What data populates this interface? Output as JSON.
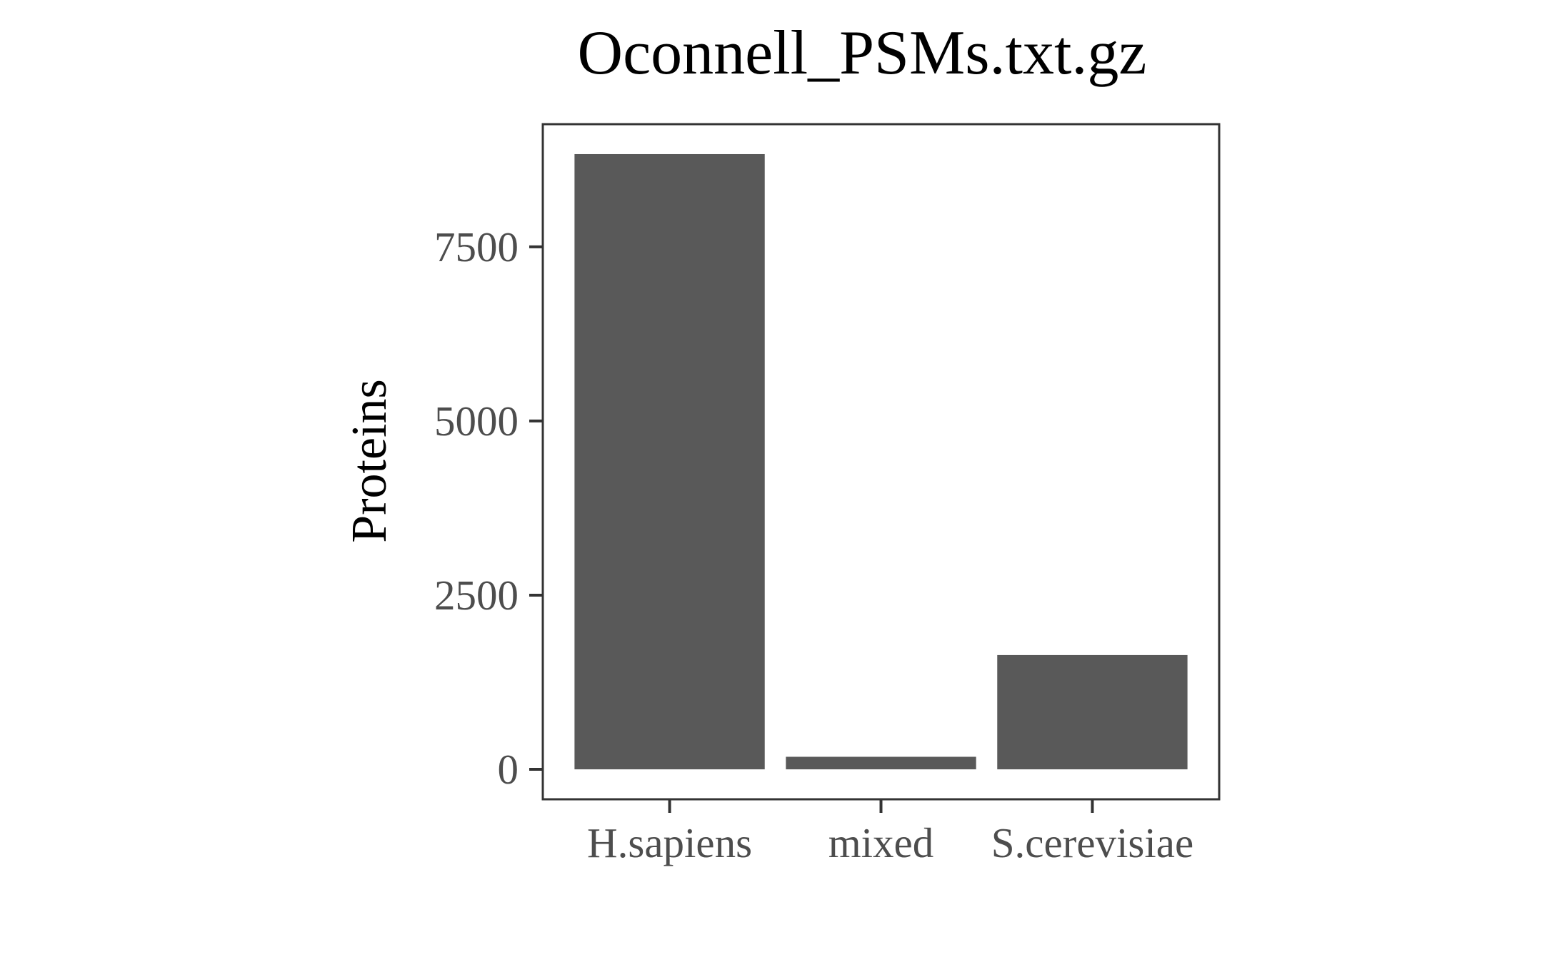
{
  "chart_data": {
    "type": "bar",
    "title": "Oconnell_PSMs.txt.gz",
    "xlabel": "",
    "ylabel": "Proteins",
    "categories": [
      "H.sapiens",
      "mixed",
      "S.cerevisiae"
    ],
    "values": [
      8830,
      180,
      1640
    ],
    "ylim": [
      -430,
      9260
    ],
    "yticks": [
      0,
      2500,
      5000,
      7500
    ],
    "ytick_labels": [
      "0",
      "2500",
      "5000",
      "7500"
    ],
    "grid": false,
    "legend": "none",
    "colors": {
      "bar": "#595959",
      "panel_border": "#333333",
      "tick_label": "#4d4d4d",
      "title": "#000000",
      "background": "#ffffff"
    }
  }
}
